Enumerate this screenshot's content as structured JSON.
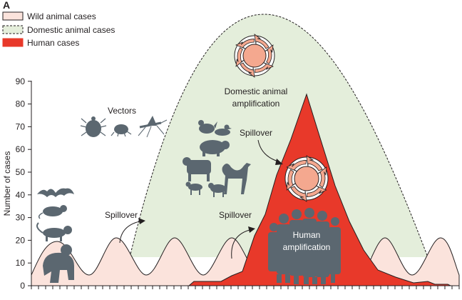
{
  "panel_label": "A",
  "legend": [
    {
      "label": "Wild animal cases",
      "fill": "#fbe3dc",
      "stroke": "#231f20",
      "style": "solid"
    },
    {
      "label": "Domestic animal cases",
      "fill": "#e4eedb",
      "stroke": "#231f20",
      "style": "dashed"
    },
    {
      "label": "Human cases",
      "fill": "#e8392a",
      "stroke": "#e8392a",
      "style": "solid"
    }
  ],
  "y_axis": {
    "label": "Number of cases",
    "ticks": [
      "0",
      "10",
      "20",
      "30",
      "40",
      "50",
      "60",
      "70",
      "80",
      "90"
    ]
  },
  "annotations": {
    "vectors": "Vectors",
    "domestic_amp_line1": "Domestic animal",
    "domestic_amp_line2": "amplification",
    "spillover_1": "Spillover",
    "spillover_2": "Spillover",
    "spillover_3": "Spillover",
    "human_amp_line1": "Human",
    "human_amp_line2": "amplification"
  },
  "colors": {
    "wild": "#fbe3dc",
    "domestic": "#e4eedb",
    "human": "#e8392a",
    "silhouette": "#5b6770",
    "amp_core": "#f4a88f",
    "outline": "#231f20"
  },
  "icons": [
    "bat-icon",
    "rat-icon",
    "monkey-icon",
    "gorilla-icon",
    "tick-icon",
    "flea-icon",
    "mosquito-icon",
    "chicken-icon",
    "duck-icon",
    "pig-icon",
    "cow-icon",
    "camel-icon",
    "goat-icon",
    "sheep-icon",
    "people-group-icon",
    "amplification-cycle-icon"
  ]
}
